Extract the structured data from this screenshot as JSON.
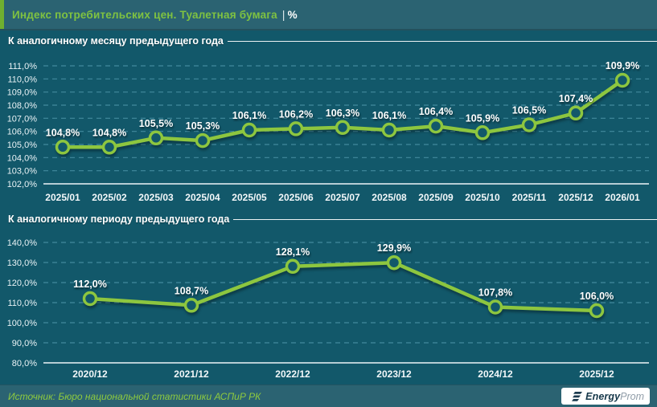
{
  "header": {
    "title": "Индекс потребительских цен. Туалетная бумага",
    "separator": "|",
    "unit": "%"
  },
  "chart_data": [
    {
      "type": "line",
      "section_title": "К аналогичному месяцу предыдущего года",
      "categories": [
        "2025/01",
        "2025/02",
        "2025/03",
        "2025/04",
        "2025/05",
        "2025/06",
        "2025/07",
        "2025/08",
        "2025/09",
        "2025/10",
        "2025/11",
        "2025/12",
        "2026/01"
      ],
      "values": [
        104.8,
        104.8,
        105.5,
        105.3,
        106.1,
        106.2,
        106.3,
        106.1,
        106.4,
        105.9,
        106.5,
        107.4,
        109.9
      ],
      "unit": "%",
      "decimal_separator": ",",
      "ylim": [
        102,
        111
      ],
      "ytick_step": 1,
      "grid": "dashed",
      "legend": "none"
    },
    {
      "type": "line",
      "section_title": "К аналогичному периоду предыдущего года",
      "categories": [
        "2020/12",
        "2021/12",
        "2022/12",
        "2023/12",
        "2024/12",
        "2025/12"
      ],
      "values": [
        112.0,
        108.7,
        128.1,
        129.9,
        107.8,
        106.0
      ],
      "unit": "%",
      "decimal_separator": ",",
      "ylim": [
        80,
        140
      ],
      "ytick_step": 10,
      "grid": "dashed",
      "legend": "none"
    }
  ],
  "footer": {
    "source": "Источник: Бюро национальной статистики АСПиР РК",
    "logo_bold": "Energy",
    "logo_light": "Prom"
  },
  "colors": {
    "line_green": "#8DC63F",
    "title_green": "#7FC241",
    "header_bg": "#2B6372",
    "body_bg": "#12586A",
    "grid_teal": "#4E97AB",
    "axis_white": "#EDF4F7",
    "logo_dark": "#1C3B4F",
    "logo_gray": "#8E9BA6"
  }
}
